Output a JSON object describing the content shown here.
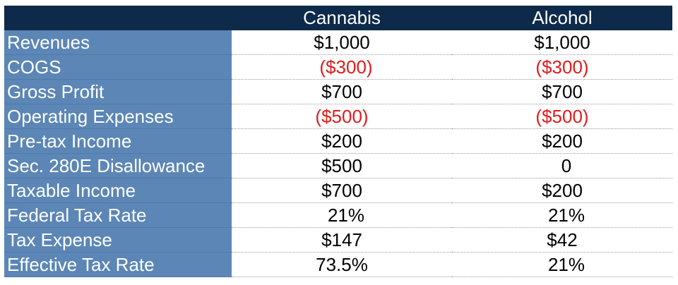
{
  "header": {
    "label_col": "",
    "col_a": "Cannabis",
    "col_b": "Alcohol"
  },
  "rows": [
    {
      "label": "Revenues",
      "a": "$1,000",
      "b": "$1,000",
      "neg": false
    },
    {
      "label": "COGS",
      "a": "($300)",
      "b": "($300)",
      "neg": true
    },
    {
      "label": "Gross Profit",
      "a": "$700",
      "b": "$700",
      "neg": false
    },
    {
      "label": "Operating Expenses",
      "a": "($500)",
      "b": "($500)",
      "neg": true
    },
    {
      "label": "Pre-tax Income",
      "a": "$200",
      "b": "$200",
      "neg": false
    },
    {
      "label": "Sec. 280E Disallowance",
      "a": "$500",
      "b": "0",
      "neg": false
    },
    {
      "label": "Taxable Income",
      "a": "$700",
      "b": "$200",
      "neg": false
    },
    {
      "label": "Federal Tax Rate",
      "a": "21%",
      "b": "21%",
      "neg": false
    },
    {
      "label": "Tax Expense",
      "a": "$147",
      "b": "$42",
      "neg": false
    },
    {
      "label": "Effective Tax Rate",
      "a": "73.5%",
      "b": "21%",
      "neg": false
    }
  ],
  "colors": {
    "header_bg": "#0d2a4a",
    "label_bg": "#5b86b6",
    "negative": "#e01b1b"
  }
}
